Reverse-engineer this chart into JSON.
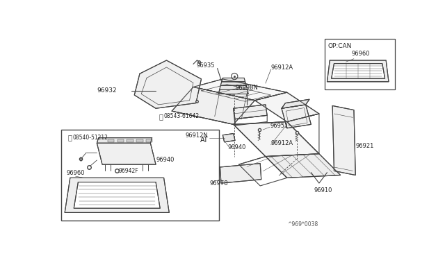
{
  "bg_color": "#ffffff",
  "line_color": "#444444",
  "label_color": "#222222",
  "footnote": "^969*0038",
  "op_can_label": "OP:CAN",
  "at_label": "AT"
}
